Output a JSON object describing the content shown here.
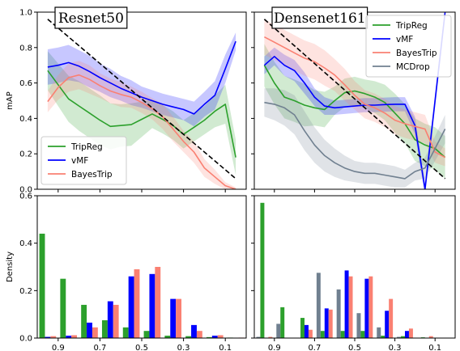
{
  "chart_data": [
    {
      "type": "line",
      "title": "Resnet50",
      "xlabel": "",
      "ylabel": "mAP",
      "ylim": [
        0,
        1.0
      ],
      "x_range": [
        1.0,
        0.0
      ],
      "yticks": [
        "0.0",
        "0.2",
        "0.4",
        "0.6",
        "0.8",
        "1.0"
      ],
      "legend": "bottom-left",
      "diagonal": {
        "x": [
          0.95,
          0.05
        ],
        "y": [
          0.96,
          0.06
        ]
      },
      "x": [
        0.95,
        0.9,
        0.85,
        0.8,
        0.75,
        0.7,
        0.65,
        0.6,
        0.55,
        0.5,
        0.45,
        0.4,
        0.35,
        0.3,
        0.25,
        0.2,
        0.15,
        0.1,
        0.05
      ],
      "series": [
        {
          "name": "TripReg",
          "color": "#2ca02c",
          "values": [
            0.67,
            0.59,
            0.51,
            0.47,
            0.43,
            0.39,
            0.355,
            0.36,
            0.365,
            0.395,
            0.425,
            0.395,
            0.36,
            0.31,
            0.35,
            0.39,
            0.44,
            0.48,
            0.18
          ],
          "band": [
            0.11,
            0.12,
            0.13,
            0.14,
            0.14,
            0.14,
            0.13,
            0.12,
            0.12,
            0.1,
            0.08,
            0.08,
            0.08,
            0.08,
            0.08,
            0.08,
            0.09,
            0.11,
            0.1
          ]
        },
        {
          "name": "vMF",
          "color": "#0000ff",
          "values": [
            0.69,
            0.7,
            0.715,
            0.695,
            0.665,
            0.63,
            0.6,
            0.57,
            0.545,
            0.52,
            0.5,
            0.48,
            0.465,
            0.45,
            0.425,
            0.48,
            0.53,
            0.68,
            0.835
          ],
          "band": [
            0.1,
            0.1,
            0.1,
            0.09,
            0.09,
            0.08,
            0.08,
            0.07,
            0.07,
            0.06,
            0.06,
            0.06,
            0.06,
            0.06,
            0.07,
            0.07,
            0.08,
            0.08,
            0.05
          ]
        },
        {
          "name": "BayesTrip",
          "color": "#fa8072",
          "values": [
            0.495,
            0.575,
            0.63,
            0.645,
            0.62,
            0.585,
            0.555,
            0.535,
            0.52,
            0.49,
            0.455,
            0.41,
            0.34,
            0.27,
            0.21,
            0.12,
            0.07,
            0.02,
            0.0
          ],
          "band": [
            0.06,
            0.07,
            0.08,
            0.08,
            0.08,
            0.07,
            0.07,
            0.07,
            0.06,
            0.06,
            0.06,
            0.07,
            0.07,
            0.06,
            0.06,
            0.05,
            0.04,
            0.02,
            0.01
          ]
        }
      ]
    },
    {
      "type": "line",
      "title": "Densenet161",
      "xlabel": "",
      "ylabel": "",
      "ylim": [
        0,
        1.0
      ],
      "x_range": [
        1.0,
        0.0
      ],
      "legend": "top-right",
      "diagonal": {
        "x": [
          0.95,
          0.05
        ],
        "y": [
          0.96,
          0.06
        ]
      },
      "x": [
        0.95,
        0.9,
        0.85,
        0.8,
        0.75,
        0.7,
        0.65,
        0.6,
        0.55,
        0.5,
        0.45,
        0.4,
        0.35,
        0.3,
        0.25,
        0.2,
        0.15,
        0.1,
        0.05
      ],
      "series": [
        {
          "name": "TripReg",
          "color": "#2ca02c",
          "values": [
            0.7,
            0.6,
            0.52,
            0.5,
            0.475,
            0.46,
            0.45,
            0.5,
            0.545,
            0.555,
            0.54,
            0.52,
            0.49,
            0.43,
            0.37,
            0.28,
            0.25,
            0.23,
            0.18
          ],
          "band": [
            0.12,
            0.12,
            0.12,
            0.12,
            0.12,
            0.1,
            0.1,
            0.08,
            0.08,
            0.08,
            0.08,
            0.09,
            0.1,
            0.11,
            0.11,
            0.12,
            0.12,
            0.12,
            0.12
          ]
        },
        {
          "name": "vMF",
          "color": "#0000ff",
          "values": [
            0.7,
            0.75,
            0.7,
            0.67,
            0.6,
            0.52,
            0.47,
            0.46,
            0.465,
            0.47,
            0.475,
            0.475,
            0.478,
            0.48,
            0.48,
            0.36,
            0.0,
            0.5,
            1.0
          ],
          "band": [
            0.05,
            0.05,
            0.06,
            0.06,
            0.06,
            0.05,
            0.05,
            0.04,
            0.04,
            0.04,
            0.04,
            0.04,
            0.04,
            0.04,
            0.04,
            0.05,
            0.04,
            0.04,
            0.03
          ]
        },
        {
          "name": "BayesTrip",
          "color": "#fa8072",
          "values": [
            0.86,
            0.83,
            0.8,
            0.77,
            0.74,
            0.72,
            0.685,
            0.645,
            0.59,
            0.53,
            0.48,
            0.46,
            0.43,
            0.39,
            0.37,
            0.355,
            0.34,
            0.21,
            0.18
          ],
          "band": [
            0.1,
            0.1,
            0.1,
            0.1,
            0.1,
            0.1,
            0.1,
            0.09,
            0.09,
            0.08,
            0.08,
            0.08,
            0.08,
            0.08,
            0.08,
            0.08,
            0.08,
            0.06,
            0.05
          ]
        },
        {
          "name": "MCDrop",
          "color": "#708090",
          "values": [
            0.49,
            0.48,
            0.46,
            0.42,
            0.33,
            0.25,
            0.19,
            0.15,
            0.12,
            0.1,
            0.09,
            0.09,
            0.08,
            0.07,
            0.06,
            0.1,
            0.12,
            0.23,
            0.34
          ],
          "band": [
            0.08,
            0.09,
            0.1,
            0.11,
            0.11,
            0.1,
            0.09,
            0.08,
            0.07,
            0.06,
            0.06,
            0.06,
            0.06,
            0.06,
            0.05,
            0.05,
            0.06,
            0.07,
            0.08
          ]
        }
      ]
    },
    {
      "type": "bar",
      "title": "",
      "xlabel": "",
      "ylabel": "Density",
      "ylim": [
        0,
        0.6
      ],
      "x_range": [
        1.0,
        0.0
      ],
      "xticks": [
        "0.9",
        "0.7",
        "0.5",
        "0.3",
        "0.1"
      ],
      "yticks": [
        "0.0",
        "0.2",
        "0.4",
        "0.6"
      ],
      "bin_centers": [
        0.95,
        0.85,
        0.75,
        0.65,
        0.55,
        0.45,
        0.35,
        0.25,
        0.15,
        0.05
      ],
      "series": [
        {
          "name": "TripReg",
          "color": "#2ca02c",
          "values": [
            0.44,
            0.25,
            0.14,
            0.075,
            0.045,
            0.03,
            0.01,
            0.008,
            0.004,
            0.002
          ]
        },
        {
          "name": "vMF",
          "color": "#0000ff",
          "values": [
            0.005,
            0.01,
            0.065,
            0.155,
            0.26,
            0.27,
            0.165,
            0.055,
            0.01,
            0.0
          ]
        },
        {
          "name": "BayesTrip",
          "color": "#fa8072",
          "values": [
            0.008,
            0.012,
            0.045,
            0.14,
            0.29,
            0.3,
            0.165,
            0.03,
            0.012,
            0.002
          ]
        }
      ]
    },
    {
      "type": "bar",
      "title": "",
      "xlabel": "",
      "ylabel": "",
      "ylim": [
        0,
        0.6
      ],
      "x_range": [
        1.0,
        0.0
      ],
      "xticks": [
        "0.9",
        "0.7",
        "0.5",
        "0.3",
        "0.1"
      ],
      "bin_centers": [
        0.95,
        0.85,
        0.75,
        0.65,
        0.55,
        0.45,
        0.35,
        0.25,
        0.15,
        0.05
      ],
      "series": [
        {
          "name": "MCDrop",
          "color": "#708090",
          "values": [
            0.005,
            0.06,
            0.0,
            0.275,
            0.205,
            0.105,
            0.045,
            0.005,
            0.0,
            0.0
          ]
        },
        {
          "name": "TripReg",
          "color": "#2ca02c",
          "values": [
            0.57,
            0.13,
            0.085,
            0.03,
            0.03,
            0.03,
            0.01,
            0.008,
            0.003,
            0.0
          ]
        },
        {
          "name": "vMF",
          "color": "#0000ff",
          "values": [
            0.0,
            0.0,
            0.055,
            0.125,
            0.285,
            0.25,
            0.115,
            0.03,
            0.0,
            0.0
          ]
        },
        {
          "name": "BayesTrip",
          "color": "#fa8072",
          "values": [
            0.005,
            0.0,
            0.035,
            0.12,
            0.26,
            0.26,
            0.165,
            0.04,
            0.008,
            0.0
          ]
        }
      ]
    }
  ]
}
